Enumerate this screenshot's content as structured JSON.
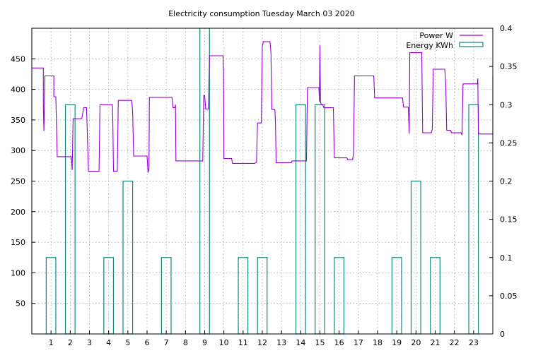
{
  "chart_data": {
    "type": "line",
    "title": "Electricity consumption Tuesday March 03 2020",
    "xlabel": "",
    "ylabel": "",
    "y2label": "",
    "xlim": [
      0,
      24
    ],
    "ylim": [
      0,
      500
    ],
    "y2lim": [
      0,
      0.4
    ],
    "x_ticks": [
      "1",
      "2",
      "3",
      "4",
      "5",
      "6",
      "7",
      "8",
      "9",
      "10",
      "11",
      "12",
      "13",
      "14",
      "15",
      "16",
      "17",
      "18",
      "19",
      "20",
      "21",
      "22",
      "23"
    ],
    "y_ticks": [
      "50",
      "100",
      "150",
      "200",
      "250",
      "300",
      "350",
      "400",
      "450"
    ],
    "y2_ticks": [
      "0",
      "0.05",
      "0.1",
      "0.15",
      "0.2",
      "0.25",
      "0.3",
      "0.35",
      "0.4"
    ],
    "grid": true,
    "legend_position": "top-right",
    "series": [
      {
        "name": "Power W",
        "axis": "left",
        "color": "#9400d3",
        "points": [
          [
            0.0,
            435
          ],
          [
            0.6,
            435
          ],
          [
            0.6,
            370
          ],
          [
            0.63,
            332
          ],
          [
            0.65,
            370
          ],
          [
            0.68,
            422
          ],
          [
            1.15,
            422
          ],
          [
            1.15,
            388
          ],
          [
            1.25,
            388
          ],
          [
            1.28,
            345
          ],
          [
            1.32,
            290
          ],
          [
            2.05,
            290
          ],
          [
            2.1,
            268
          ],
          [
            2.15,
            352
          ],
          [
            2.6,
            352
          ],
          [
            2.7,
            370
          ],
          [
            2.85,
            370
          ],
          [
            2.88,
            340
          ],
          [
            2.95,
            266
          ],
          [
            3.5,
            266
          ],
          [
            3.55,
            375
          ],
          [
            4.2,
            375
          ],
          [
            4.22,
            345
          ],
          [
            4.25,
            266
          ],
          [
            4.45,
            266
          ],
          [
            4.5,
            382
          ],
          [
            5.2,
            382
          ],
          [
            5.25,
            363
          ],
          [
            5.3,
            291
          ],
          [
            6.0,
            291
          ],
          [
            6.05,
            265
          ],
          [
            6.1,
            268
          ],
          [
            6.12,
            387
          ],
          [
            7.3,
            387
          ],
          [
            7.35,
            370
          ],
          [
            7.45,
            370
          ],
          [
            7.48,
            375
          ],
          [
            7.5,
            283
          ],
          [
            8.9,
            283
          ],
          [
            8.95,
            390
          ],
          [
            9.0,
            390
          ],
          [
            9.05,
            368
          ],
          [
            9.2,
            368
          ],
          [
            9.25,
            455
          ],
          [
            9.95,
            455
          ],
          [
            9.98,
            430
          ],
          [
            10.0,
            287
          ],
          [
            10.4,
            287
          ],
          [
            10.45,
            279
          ],
          [
            11.6,
            279
          ],
          [
            11.7,
            281
          ],
          [
            11.75,
            345
          ],
          [
            11.95,
            345
          ],
          [
            12.0,
            470
          ],
          [
            12.05,
            478
          ],
          [
            12.4,
            478
          ],
          [
            12.45,
            460
          ],
          [
            12.5,
            367
          ],
          [
            12.65,
            367
          ],
          [
            12.68,
            350
          ],
          [
            12.72,
            280
          ],
          [
            13.5,
            280
          ],
          [
            13.55,
            283
          ],
          [
            14.3,
            283
          ],
          [
            14.35,
            403
          ],
          [
            14.95,
            403
          ],
          [
            14.97,
            380
          ],
          [
            15.0,
            472
          ],
          [
            15.03,
            380
          ],
          [
            15.07,
            375
          ],
          [
            15.15,
            375
          ],
          [
            15.2,
            370
          ],
          [
            15.7,
            370
          ],
          [
            15.75,
            288
          ],
          [
            16.4,
            288
          ],
          [
            16.45,
            285
          ],
          [
            16.7,
            285
          ],
          [
            16.75,
            295
          ],
          [
            16.8,
            422
          ],
          [
            17.8,
            422
          ],
          [
            17.85,
            386
          ],
          [
            19.3,
            386
          ],
          [
            19.35,
            371
          ],
          [
            19.6,
            371
          ],
          [
            19.65,
            328
          ],
          [
            19.68,
            460
          ],
          [
            20.3,
            460
          ],
          [
            20.35,
            329
          ],
          [
            20.8,
            329
          ],
          [
            20.85,
            335
          ],
          [
            20.9,
            433
          ],
          [
            21.5,
            433
          ],
          [
            21.55,
            410
          ],
          [
            21.6,
            333
          ],
          [
            21.8,
            333
          ],
          [
            21.85,
            329
          ],
          [
            22.35,
            329
          ],
          [
            22.4,
            325
          ],
          [
            22.45,
            409
          ],
          [
            23.2,
            409
          ],
          [
            23.22,
            418
          ],
          [
            23.25,
            327
          ],
          [
            24.0,
            327
          ],
          [
            24.0,
            422
          ]
        ]
      },
      {
        "name": "Energy KWh",
        "axis": "right",
        "color": "#11897a",
        "bins": [
          {
            "hour": 1,
            "value": 0.1
          },
          {
            "hour": 2,
            "value": 0.3
          },
          {
            "hour": 3,
            "value": 0
          },
          {
            "hour": 4,
            "value": 0.1
          },
          {
            "hour": 5,
            "value": 0.2
          },
          {
            "hour": 6,
            "value": 0
          },
          {
            "hour": 7,
            "value": 0.1
          },
          {
            "hour": 8,
            "value": 0
          },
          {
            "hour": 9,
            "value": 0.4
          },
          {
            "hour": 10,
            "value": 0
          },
          {
            "hour": 11,
            "value": 0.1
          },
          {
            "hour": 12,
            "value": 0.1
          },
          {
            "hour": 13,
            "value": 0
          },
          {
            "hour": 14,
            "value": 0.3
          },
          {
            "hour": 15,
            "value": 0.3
          },
          {
            "hour": 16,
            "value": 0.1
          },
          {
            "hour": 17,
            "value": 0
          },
          {
            "hour": 18,
            "value": 0
          },
          {
            "hour": 19,
            "value": 0.1
          },
          {
            "hour": 20,
            "value": 0.2
          },
          {
            "hour": 21,
            "value": 0.1
          },
          {
            "hour": 22,
            "value": 0
          },
          {
            "hour": 23,
            "value": 0.3
          }
        ]
      }
    ]
  }
}
